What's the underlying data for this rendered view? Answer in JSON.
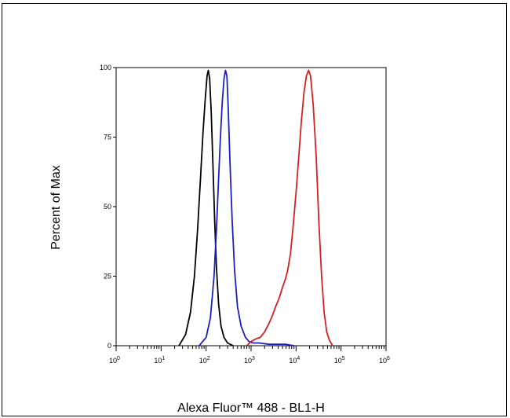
{
  "chart_data": {
    "type": "line",
    "title": "",
    "xlabel": "Alexa Fluor™ 488 - BL1-H",
    "ylabel": "Percent of Max",
    "x_scale": "log",
    "xlim": [
      1,
      1000000
    ],
    "ylim": [
      0,
      100
    ],
    "y_ticks": [
      0,
      25,
      50,
      75,
      100
    ],
    "y_tick_labels": [
      "0",
      "25",
      "50",
      "75",
      "100"
    ],
    "x_ticks": [
      1,
      10,
      100,
      1000,
      10000,
      100000,
      1000000
    ],
    "x_tick_labels": [
      {
        "base": "10",
        "exp": "0"
      },
      {
        "base": "10",
        "exp": "1"
      },
      {
        "base": "10",
        "exp": "2"
      },
      {
        "base": "10",
        "exp": "3"
      },
      {
        "base": "10",
        "exp": "4"
      },
      {
        "base": "10",
        "exp": "5"
      },
      {
        "base": "10",
        "exp": "6"
      }
    ],
    "grid": false,
    "series": [
      {
        "color": "#000000",
        "points": [
          [
            25,
            0
          ],
          [
            35,
            4
          ],
          [
            45,
            12
          ],
          [
            55,
            25
          ],
          [
            65,
            42
          ],
          [
            75,
            60
          ],
          [
            85,
            76
          ],
          [
            95,
            88
          ],
          [
            105,
            97
          ],
          [
            112,
            99
          ],
          [
            120,
            96
          ],
          [
            130,
            84
          ],
          [
            142,
            65
          ],
          [
            155,
            45
          ],
          [
            170,
            28
          ],
          [
            190,
            15
          ],
          [
            215,
            7
          ],
          [
            250,
            3
          ],
          [
            300,
            1
          ],
          [
            400,
            0
          ]
        ]
      },
      {
        "color": "#1f1fbf",
        "points": [
          [
            70,
            0
          ],
          [
            100,
            3
          ],
          [
            125,
            10
          ],
          [
            150,
            25
          ],
          [
            170,
            42
          ],
          [
            190,
            60
          ],
          [
            210,
            76
          ],
          [
            230,
            88
          ],
          [
            250,
            96
          ],
          [
            270,
            99
          ],
          [
            290,
            97
          ],
          [
            310,
            86
          ],
          [
            340,
            66
          ],
          [
            380,
            45
          ],
          [
            430,
            27
          ],
          [
            500,
            14
          ],
          [
            600,
            7
          ],
          [
            750,
            3
          ],
          [
            900,
            1.5
          ],
          [
            1100,
            1
          ],
          [
            1500,
            1
          ],
          [
            2500,
            0.5
          ],
          [
            4000,
            0.5
          ],
          [
            6000,
            0.5
          ],
          [
            9000,
            0
          ]
        ]
      },
      {
        "color": "#d42020",
        "points": [
          [
            800,
            0
          ],
          [
            1000,
            1.5
          ],
          [
            1300,
            2.5
          ],
          [
            1600,
            3
          ],
          [
            2000,
            5
          ],
          [
            2500,
            8
          ],
          [
            3000,
            11
          ],
          [
            3500,
            14
          ],
          [
            4200,
            17
          ],
          [
            5000,
            21
          ],
          [
            5800,
            24
          ],
          [
            6500,
            27
          ],
          [
            7500,
            33
          ],
          [
            8500,
            42
          ],
          [
            10000,
            55
          ],
          [
            11500,
            68
          ],
          [
            13000,
            80
          ],
          [
            15000,
            91
          ],
          [
            17000,
            97
          ],
          [
            19000,
            99
          ],
          [
            21000,
            97
          ],
          [
            24000,
            87
          ],
          [
            28000,
            68
          ],
          [
            32000,
            45
          ],
          [
            37000,
            25
          ],
          [
            42000,
            12
          ],
          [
            48000,
            5
          ],
          [
            55000,
            2
          ],
          [
            65000,
            0
          ]
        ]
      }
    ]
  }
}
